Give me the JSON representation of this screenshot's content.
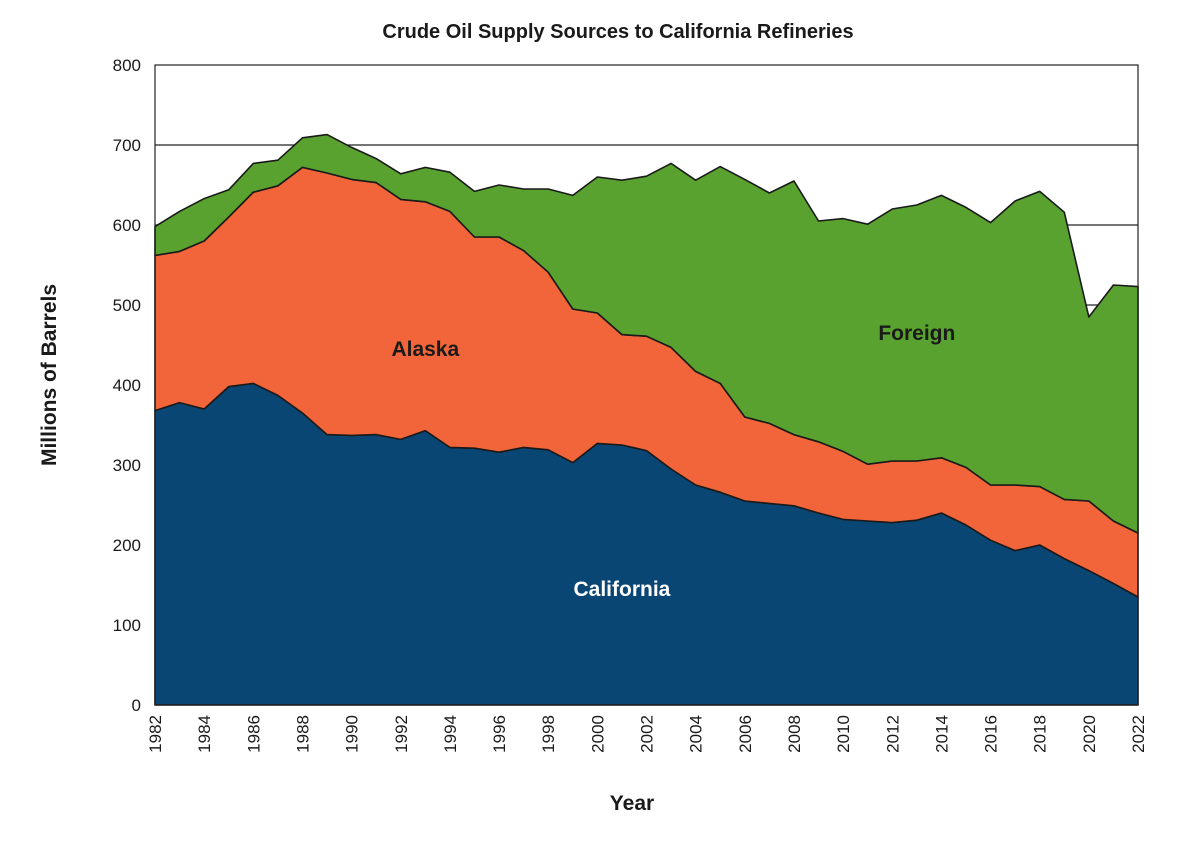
{
  "chart_data": {
    "type": "area",
    "stacked": true,
    "title": "Crude Oil Supply Sources to California Refineries",
    "xlabel": "Year",
    "ylabel": "Millions of Barrels",
    "ylim": [
      0,
      800
    ],
    "yticks": [
      "0",
      "100",
      "200",
      "300",
      "400",
      "500",
      "600",
      "700",
      "800"
    ],
    "xticks": [
      "1982",
      "1984",
      "1986",
      "1988",
      "1990",
      "1992",
      "1994",
      "1996",
      "1998",
      "2000",
      "2002",
      "2004",
      "2006",
      "2008",
      "2010",
      "2012",
      "2014",
      "2016",
      "2018",
      "2020",
      "2022"
    ],
    "grid": true,
    "legend": "labels inside areas",
    "x": [
      1982,
      1983,
      1984,
      1985,
      1986,
      1987,
      1988,
      1989,
      1990,
      1991,
      1992,
      1993,
      1994,
      1995,
      1996,
      1997,
      1998,
      1999,
      2000,
      2001,
      2002,
      2003,
      2004,
      2005,
      2006,
      2007,
      2008,
      2009,
      2010,
      2011,
      2012,
      2013,
      2014,
      2015,
      2016,
      2017,
      2018,
      2019,
      2020,
      2021,
      2022
    ],
    "series": [
      {
        "name": "California",
        "color": "#0a4674",
        "label_color": "#ffffff",
        "values": [
          368,
          378,
          370,
          398,
          402,
          387,
          365,
          338,
          337,
          338,
          332,
          343,
          322,
          321,
          316,
          322,
          319,
          303,
          327,
          325,
          318,
          295,
          275,
          266,
          255,
          252,
          249,
          240,
          232,
          230,
          228,
          231,
          240,
          225,
          206,
          193,
          200,
          183,
          168,
          152,
          135
        ]
      },
      {
        "name": "Alaska",
        "color": "#f2653a",
        "label_color": "#1a1a1a",
        "values": [
          194,
          189,
          210,
          212,
          239,
          262,
          307,
          327,
          320,
          315,
          300,
          286,
          295,
          264,
          269,
          246,
          222,
          192,
          163,
          138,
          143,
          152,
          142,
          136,
          105,
          100,
          89,
          89,
          85,
          71,
          77,
          74,
          69,
          72,
          69,
          82,
          73,
          74,
          87,
          78,
          80
        ]
      },
      {
        "name": "Foreign",
        "color": "#5aa22f",
        "label_color": "#1a1a1a",
        "values": [
          36,
          50,
          53,
          34,
          36,
          32,
          37,
          48,
          40,
          30,
          32,
          43,
          49,
          57,
          65,
          77,
          104,
          142,
          170,
          193,
          200,
          230,
          239,
          271,
          297,
          288,
          317,
          276,
          291,
          300,
          315,
          320,
          328,
          325,
          328,
          355,
          369,
          359,
          230,
          295,
          308
        ]
      }
    ]
  }
}
